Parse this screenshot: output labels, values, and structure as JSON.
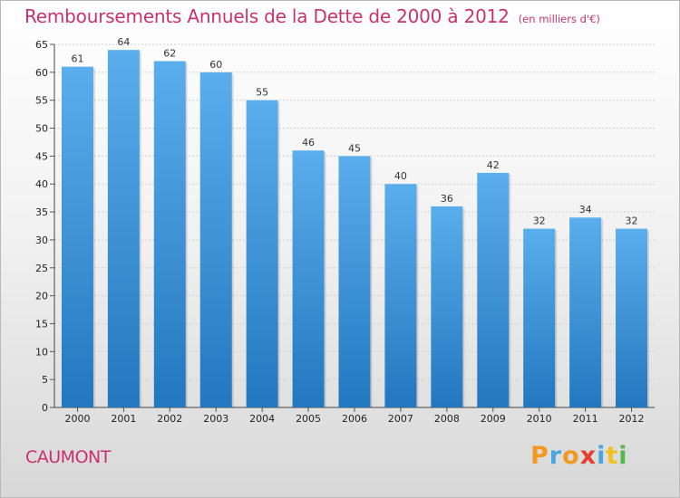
{
  "chart_data": {
    "type": "bar",
    "title": "Remboursements Annuels de la Dette de 2000 à 2012",
    "subtitle": "(en milliers d'€)",
    "categories": [
      "2000",
      "2001",
      "2002",
      "2003",
      "2004",
      "2005",
      "2006",
      "2007",
      "2008",
      "2009",
      "2010",
      "2011",
      "2012"
    ],
    "values": [
      61,
      64,
      62,
      60,
      55,
      46,
      45,
      40,
      36,
      42,
      32,
      34,
      32
    ],
    "ylim": [
      0,
      65
    ],
    "yticks": [
      0,
      5,
      10,
      15,
      20,
      25,
      30,
      35,
      40,
      45,
      50,
      55,
      60,
      65
    ],
    "xlabel": "",
    "ylabel": "",
    "grid": true,
    "bar_color_top": "#5aaeec",
    "bar_color_bottom": "#2377bf"
  },
  "footer": {
    "place": "CAUMONT",
    "brand_letters": [
      "P",
      "r",
      "o",
      "x",
      "i",
      "t",
      "i"
    ],
    "brand_colors": [
      "#f29a1f",
      "#49a6e0",
      "#f29a1f",
      "#e53d2f",
      "#49a6e0",
      "#f2c21a",
      "#55b84a"
    ]
  },
  "colors": {
    "accent": "#c8326e"
  }
}
